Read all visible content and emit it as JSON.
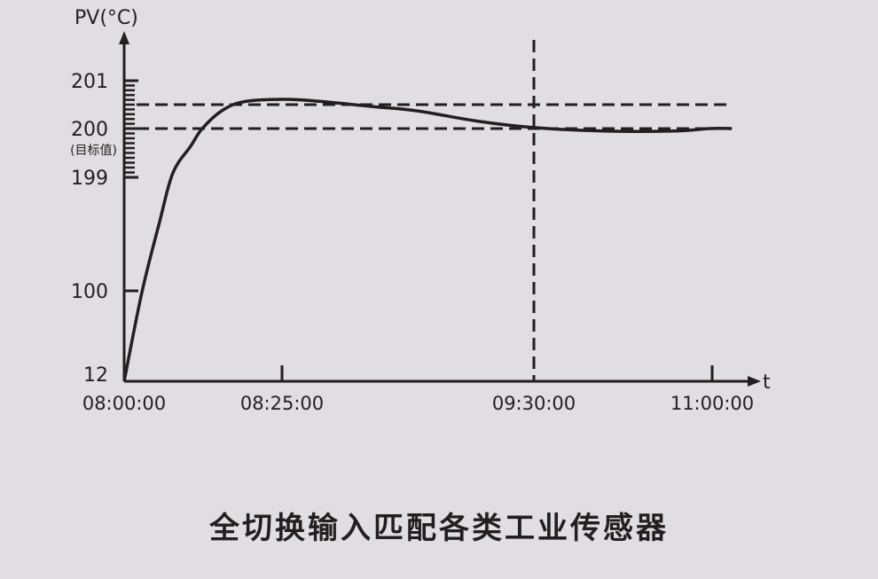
{
  "chart_data": {
    "type": "line",
    "ylabel": "PV(°C)",
    "xlabel": "t",
    "y_ticks": [
      {
        "value": 12,
        "label": "12"
      },
      {
        "value": 100,
        "label": "100"
      },
      {
        "value": 199,
        "label": "199"
      },
      {
        "value": 200,
        "label": "200",
        "sublabel": "(目标值)"
      },
      {
        "value": 201,
        "label": "201"
      }
    ],
    "x_ticks": [
      "08:00:00",
      "08:25:00",
      "09:30:00",
      "11:00:00"
    ],
    "axis_scale": "broken (non-linear) on both axes",
    "minor_ticks": {
      "from": 199,
      "to": 201,
      "step": 0.1
    },
    "reference_lines": {
      "horizontal_dashed": [
        200,
        200.5
      ],
      "vertical_dashed": [
        "09:30:00"
      ]
    },
    "series": [
      {
        "color": "#231f20",
        "points": [
          {
            "t": "08:00:00",
            "pv": 12
          },
          {
            "t": "08:02:48",
            "pv": 98.3
          },
          {
            "t": "08:05:37",
            "pv": 160.3
          },
          {
            "t": "08:07:43",
            "pv": 199.09
          },
          {
            "t": "08:10:32",
            "pv": 199.64
          },
          {
            "t": "08:12:22",
            "pv": 200.0
          },
          {
            "t": "08:15:27",
            "pv": 200.37
          },
          {
            "t": "08:18:57",
            "pv": 200.56
          },
          {
            "t": "08:25:27",
            "pv": 200.61
          },
          {
            "t": "08:34:37",
            "pv": 200.57
          },
          {
            "t": "08:48:17",
            "pv": 200.46
          },
          {
            "t": "08:59:47",
            "pv": 200.37
          },
          {
            "t": "09:15:49",
            "pv": 200.15
          },
          {
            "t": "09:30:00",
            "pv": 200.02
          },
          {
            "t": "10:04:56",
            "pv": 199.95
          },
          {
            "t": "10:40:46",
            "pv": 199.95
          },
          {
            "t": "10:58:40",
            "pv": 200.0
          },
          {
            "t": "11:09:56",
            "pv": 200.0
          }
        ]
      }
    ],
    "grid": false
  },
  "caption": "全切换输入匹配各类工业传感器",
  "colors": {
    "background": "#e0dee0",
    "ink": "#231f20"
  }
}
